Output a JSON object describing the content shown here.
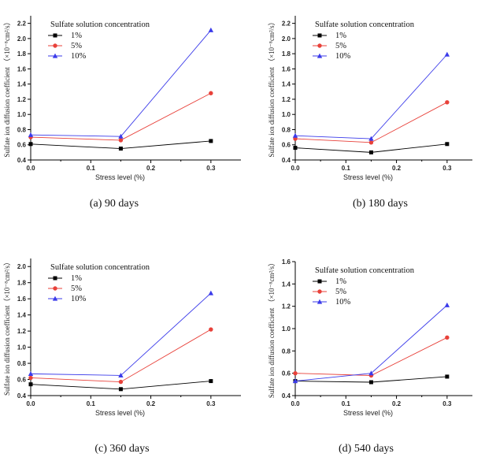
{
  "legend_title": "Sulfate solution concentration",
  "colors": {
    "1%": "#000000",
    "5%": "#e8413a",
    "10%": "#3b3bea"
  },
  "chart_data": [
    {
      "type": "line",
      "caption": "(a) 90 days",
      "xlabel": "Stress level   (%)",
      "ylabel": "Sulfate ion diffusion coefficient （×10⁻⁸cm²/s）",
      "x": [
        0,
        0.15,
        0.3
      ],
      "xlim": [
        0,
        0.35
      ],
      "ylim": [
        0.4,
        2.3
      ],
      "xticks": [
        0.0,
        0.1,
        0.2,
        0.3
      ],
      "xtick_labels": [
        "0.0",
        "0.1",
        "0.2",
        "0.3"
      ],
      "yticks": [
        0.4,
        0.6,
        0.8,
        1.0,
        1.2,
        1.4,
        1.6,
        1.8,
        2.0,
        2.2
      ],
      "ytick_labels": [
        "0.4",
        "0.6",
        "0.8",
        "1.0",
        "1.2",
        "1.4",
        "1.6",
        "1.8",
        "2.0",
        "2.2"
      ],
      "legend_placement": "top-left",
      "series": [
        {
          "name": "1%",
          "values": [
            0.61,
            0.55,
            0.65
          ],
          "marker": "square"
        },
        {
          "name": "5%",
          "values": [
            0.7,
            0.66,
            1.28
          ],
          "marker": "circle"
        },
        {
          "name": "10%",
          "values": [
            0.73,
            0.71,
            2.11
          ],
          "marker": "triangle"
        }
      ]
    },
    {
      "type": "line",
      "caption": "(b) 180 days",
      "xlabel": "Stress level   (%)",
      "ylabel": "Sulfate ion diffusion coefficient （×10⁻⁸cm²/s）",
      "x": [
        0,
        0.15,
        0.3
      ],
      "xlim": [
        0,
        0.35
      ],
      "ylim": [
        0.4,
        2.3
      ],
      "xticks": [
        0.0,
        0.1,
        0.2,
        0.3
      ],
      "xtick_labels": [
        "0.0",
        "0.1",
        "0.2",
        "0.3"
      ],
      "yticks": [
        0.4,
        0.6,
        0.8,
        1.0,
        1.2,
        1.4,
        1.6,
        1.8,
        2.0,
        2.2
      ],
      "ytick_labels": [
        "0.4",
        "0.6",
        "0.8",
        "1.0",
        "1.2",
        "1.4",
        "1.6",
        "1.8",
        "2.0",
        "2.2"
      ],
      "legend_placement": "top-left",
      "series": [
        {
          "name": "1%",
          "values": [
            0.56,
            0.5,
            0.61
          ],
          "marker": "square"
        },
        {
          "name": "5%",
          "values": [
            0.68,
            0.63,
            1.16
          ],
          "marker": "circle"
        },
        {
          "name": "10%",
          "values": [
            0.72,
            0.68,
            1.79
          ],
          "marker": "triangle"
        }
      ]
    },
    {
      "type": "line",
      "caption": "(c) 360 days",
      "xlabel": "Stress level  (%)",
      "ylabel": "Sulfate ion diffusion coefficient（×10⁻⁸cm²/s）",
      "x": [
        0,
        0.15,
        0.3
      ],
      "xlim": [
        0,
        0.35
      ],
      "ylim": [
        0.4,
        2.1
      ],
      "xticks": [
        0.0,
        0.1,
        0.2,
        0.3
      ],
      "xtick_labels": [
        "0.0",
        "0.1",
        "0.2",
        "0.3"
      ],
      "yticks": [
        0.4,
        0.6,
        0.8,
        1.0,
        1.2,
        1.4,
        1.6,
        1.8,
        2.0
      ],
      "ytick_labels": [
        "0.4",
        "0.6",
        "0.8",
        "1.0",
        "1.2",
        "1.4",
        "1.6",
        "1.8",
        "2.0"
      ],
      "legend_placement": "top-left",
      "series": [
        {
          "name": "1%",
          "values": [
            0.54,
            0.48,
            0.58
          ],
          "marker": "square"
        },
        {
          "name": "5%",
          "values": [
            0.62,
            0.57,
            1.22
          ],
          "marker": "circle"
        },
        {
          "name": "10%",
          "values": [
            0.67,
            0.65,
            1.67
          ],
          "marker": "triangle"
        }
      ]
    },
    {
      "type": "line",
      "caption": "(d) 540 days",
      "xlabel": "Stress level (%)",
      "ylabel": "Sulfate ion diffusion coefficient （×10⁻⁸cm²/s）",
      "x": [
        0,
        0.15,
        0.3
      ],
      "xlim": [
        0,
        0.35
      ],
      "ylim": [
        0.4,
        1.6
      ],
      "xticks": [
        0.0,
        0.1,
        0.2,
        0.3
      ],
      "xtick_labels": [
        "0.0",
        "0.1",
        "0.2",
        "0.3"
      ],
      "yticks": [
        0.4,
        0.6,
        0.8,
        1.0,
        1.2,
        1.4,
        1.6
      ],
      "ytick_labels": [
        "0.4",
        "0.6",
        "0.8",
        "1.0",
        "1.2",
        "1.4",
        "1.6"
      ],
      "legend_placement": "top-left",
      "series": [
        {
          "name": "1%",
          "values": [
            0.53,
            0.52,
            0.57
          ],
          "marker": "square"
        },
        {
          "name": "5%",
          "values": [
            0.6,
            0.58,
            0.92
          ],
          "marker": "circle"
        },
        {
          "name": "10%",
          "values": [
            0.53,
            0.6,
            1.21
          ],
          "marker": "triangle"
        }
      ]
    }
  ]
}
